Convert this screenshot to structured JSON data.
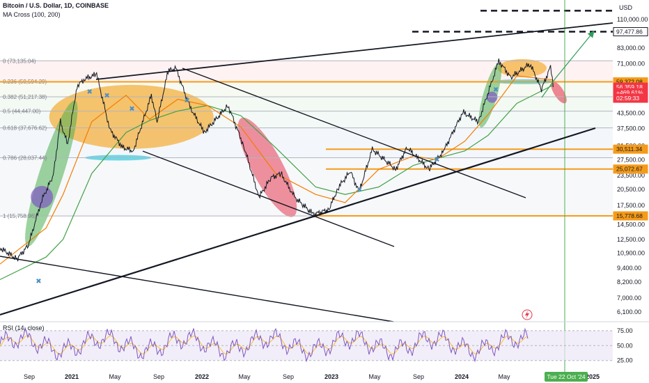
{
  "header": {
    "title": "Bitcoin / U.S. Dollar, 1D, COINBASE",
    "indicator": "MA Cross (100, 200)"
  },
  "colors": {
    "background": "#ffffff",
    "fib_line": "#b2b5be",
    "orange_zone": "#f5a623",
    "green_zone": "#4caf50",
    "red_zone": "#e53950",
    "purple_marker": "#7e57c2",
    "cyan_marker": "#4dd0e1",
    "ma_short": "#f57c00",
    "ma_long": "#43a047",
    "price": "#131722",
    "rsi": "#7e57c2",
    "rsi_ma": "#fbc02d",
    "vertical_marker": "#4caf50",
    "arrow": "#2e9e5b"
  },
  "chart_data": {
    "type": "line",
    "title": "Bitcoin / U.S. Dollar, 1D, COINBASE",
    "currency": "USD",
    "y_scale": "log",
    "ylim": [
      5700,
      125000
    ],
    "x_axis_ticks": [
      "Sep",
      "2021",
      "May",
      "Sep",
      "2022",
      "May",
      "Sep",
      "2023",
      "May",
      "Sep",
      "2024",
      "May",
      "S",
      "2025"
    ],
    "y_axis_ticks": [
      "110,000.00",
      "83,000.00",
      "71,000.00",
      "50,000.00",
      "43,500.00",
      "37,500.00",
      "31,500.00",
      "27,500.00",
      "23,500.00",
      "20,500.00",
      "17,500.00",
      "14,500.00",
      "12,500.00",
      "10,900.00",
      "9,400.00",
      "8,200.00",
      "7,000.00",
      "6,100.00"
    ],
    "fib_levels": [
      {
        "label": "0 (73,135.04)",
        "value": 73135.04
      },
      {
        "label": "0.236 (59,594.29)",
        "value": 59594.29
      },
      {
        "label": "0.382 (51,217.38)",
        "value": 51217.38
      },
      {
        "label": "0.5 (44,447.00)",
        "value": 44447.0
      },
      {
        "label": "0.618 (37,676.62)",
        "value": 37676.62
      },
      {
        "label": "0.786 (28,037.44)",
        "value": 28037.44
      },
      {
        "label": "1 (15,758.96)",
        "value": 15758.96
      }
    ],
    "price_tags": [
      {
        "label": "97,477.86",
        "value": 97477.86,
        "style": "outline"
      },
      {
        "label": "59,372.08",
        "value": 59372.08,
        "style": "orange"
      },
      {
        "label": "56,359.18",
        "value": 56359.18,
        "style": "red"
      },
      {
        "label": "+469.61%",
        "value": 53300,
        "style": "red"
      },
      {
        "label": "02:59:33",
        "value": 50500,
        "style": "red"
      },
      {
        "label": "30,511.34",
        "value": 30511.34,
        "style": "orange"
      },
      {
        "label": "25,072.67",
        "value": 25072.67,
        "style": "orange"
      },
      {
        "label": "15,778.68",
        "value": 15778.68,
        "style": "orange"
      }
    ],
    "target_levels": [
      120000,
      97477.86
    ],
    "date_marker": "Tue 22 Oct '24",
    "series": [
      {
        "name": "BTCUSD",
        "x": [
          "2020-08-01",
          "2020-09-15",
          "2020-10-15",
          "2020-11-20",
          "2020-12-20",
          "2021-01-08",
          "2021-01-27",
          "2021-02-21",
          "2021-03-13",
          "2021-04-14",
          "2021-05-19",
          "2021-06-22",
          "2021-07-20",
          "2021-09-06",
          "2021-09-21",
          "2021-10-20",
          "2021-11-10",
          "2021-12-15",
          "2022-01-24",
          "2022-03-28",
          "2022-05-10",
          "2022-06-18",
          "2022-07-20",
          "2022-08-15",
          "2022-09-20",
          "2022-11-09",
          "2022-12-20",
          "2023-01-15",
          "2023-02-15",
          "2023-03-10",
          "2023-04-14",
          "2023-06-15",
          "2023-07-15",
          "2023-09-11",
          "2023-10-20",
          "2023-12-10",
          "2024-01-20",
          "2024-03-14",
          "2024-04-15",
          "2024-06-05",
          "2024-07-05",
          "2024-07-29",
          "2024-08-05"
        ],
        "values": [
          11500,
          10300,
          11800,
          18500,
          23500,
          40000,
          32000,
          57000,
          61000,
          64000,
          37000,
          31000,
          30000,
          52000,
          40000,
          66000,
          68000,
          47000,
          36000,
          47000,
          31000,
          19000,
          23000,
          24000,
          19000,
          16000,
          16800,
          21000,
          24500,
          20000,
          30500,
          25000,
          31000,
          25000,
          30000,
          44000,
          40000,
          73000,
          62000,
          71000,
          55000,
          69000,
          56359
        ]
      },
      {
        "name": "MA 100",
        "x": [
          "2020-08-01",
          "2020-12-01",
          "2021-01-15",
          "2021-04-01",
          "2021-07-01",
          "2021-09-01",
          "2021-11-15",
          "2022-02-01",
          "2022-05-01",
          "2022-08-01",
          "2022-11-15",
          "2023-02-01",
          "2023-05-01",
          "2023-08-01",
          "2023-10-01",
          "2023-12-15",
          "2024-02-15",
          "2024-05-01",
          "2024-08-05"
        ],
        "values": [
          9800,
          14000,
          19500,
          40000,
          52000,
          41000,
          50000,
          47000,
          38000,
          24000,
          19500,
          18000,
          25000,
          28500,
          27500,
          33000,
          43000,
          63000,
          60500
        ]
      },
      {
        "name": "MA 200",
        "x": [
          "2020-08-01",
          "2020-12-01",
          "2021-01-15",
          "2021-04-01",
          "2021-07-01",
          "2021-09-01",
          "2021-11-15",
          "2022-02-01",
          "2022-05-01",
          "2022-08-01",
          "2022-11-15",
          "2023-02-01",
          "2023-05-01",
          "2023-08-01",
          "2023-10-01",
          "2023-12-15",
          "2024-02-15",
          "2024-05-01",
          "2024-08-05"
        ],
        "values": [
          8400,
          10500,
          12500,
          24000,
          36000,
          40500,
          44500,
          47000,
          42500,
          31000,
          21000,
          19500,
          21000,
          26000,
          27800,
          30000,
          35000,
          48000,
          57500
        ]
      }
    ],
    "rsi": {
      "label": "RSI (14, close)",
      "ylim": [
        20,
        90
      ],
      "ticks": [
        "75.00",
        "50.00",
        "25.00"
      ]
    }
  }
}
